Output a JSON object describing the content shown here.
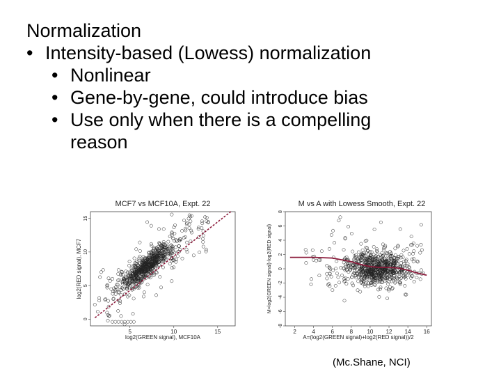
{
  "slide": {
    "title": "Normalization",
    "bullet_char": "•",
    "bullet1": "Intensity-based (Lowess) normalization",
    "sub_bullets": [
      "Nonlinear",
      "Gene-by-gene, could introduce bias",
      "Use only when there is a compelling"
    ],
    "sub_bullet3_continuation": "reason",
    "credit": "(Mc.Shane, NCI)"
  },
  "chart_data": [
    {
      "type": "scatter",
      "title": "MCF7 vs MCF10A, Expt. 22",
      "xlabel": "log2(GREEN signal), MCF10A",
      "ylabel": "log2(RED signal), MCF7",
      "xlim": [
        0.5,
        17
      ],
      "ylim": [
        -1,
        16
      ],
      "xticks": [
        5,
        10,
        15
      ],
      "yticks": [
        0,
        5,
        10,
        15
      ],
      "ytick_labels": [
        "0",
        "5",
        "10",
        "15"
      ],
      "reference_line": {
        "from": [
          1,
          0.2
        ],
        "to": [
          16.5,
          16
        ],
        "color": "#8b1a3a"
      },
      "point_color": "#222222"
    },
    {
      "type": "scatter",
      "title": "M vs A with Lowess Smooth, Expt. 22",
      "xlabel": "A=(log2(GREEN signal)+log2(RED signal))/2",
      "ylabel": "M=log2(GREEN signal)-log2(RED signal)",
      "xlim": [
        1,
        16.5
      ],
      "ylim": [
        -8,
        8
      ],
      "xticks": [
        2,
        4,
        6,
        8,
        10,
        12,
        14,
        16
      ],
      "yticks": [
        -8,
        -6,
        -4,
        -2,
        0,
        2,
        4,
        6,
        8
      ],
      "lowess_curve": {
        "x": [
          1.5,
          4,
          6,
          8,
          9,
          10,
          11,
          12,
          13,
          14,
          15,
          16
        ],
        "y": [
          1.6,
          1.6,
          1.5,
          1.0,
          0.6,
          0.3,
          0.2,
          0.2,
          0.1,
          -0.2,
          -0.6,
          -0.9
        ],
        "color": "#8b1a3a"
      },
      "point_color": "#222222"
    }
  ]
}
